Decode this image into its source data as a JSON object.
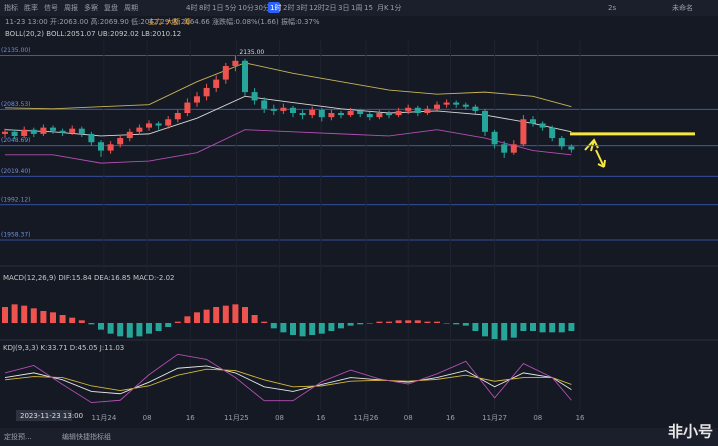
{
  "ui": {
    "toolbar": [
      "指标",
      "胜率",
      "信号",
      "周报",
      "多察",
      "复盘",
      "周期"
    ],
    "tags": [
      "主力",
      "大额",
      "筹"
    ],
    "timeframes": [
      "4时",
      "8时",
      "1日",
      "5分",
      "10分",
      "30分",
      "1时",
      "2时",
      "3时",
      "12时",
      "2日",
      "3日",
      "1周",
      "15",
      "月K",
      "1分"
    ],
    "active_timeframe": 6,
    "top_right": [
      "2s",
      "未命名"
    ],
    "ohlc_legend": "11-23 13:00 开:2063.00 高:2069.90 低:2062.29 收:2064.66 涨跌幅:0.08%(1.66) 振幅:0.37%",
    "boll_legend": "BOLL(20,2)  BOLL:2051.07  UB:2092.02  LB:2010.12",
    "macd_legend": "MACD(12,26,9)  DIF:15.84  DEA:16.85  MACD:-2.02",
    "kdj_legend": "KDJ(9,3,3)  K:33.71  D:45.05  J:11.03",
    "cursor_time": "2023-11-23 13:00",
    "bottom_bar": [
      "定投预...",
      "编辑快捷指标组"
    ],
    "watermark": "非小号"
  },
  "chart_data": {
    "type": "candlestick",
    "up_color": "#ef5350",
    "down_color": "#26a69a",
    "ylim": [
      1944,
      2148
    ],
    "high_label": "2135.00",
    "levels": [
      {
        "value": 2135.0,
        "label": "(2135.00)"
      },
      {
        "value": 2083.53,
        "label": "(2083.53)"
      },
      {
        "value": 2048.69,
        "label": "(2048.69)"
      },
      {
        "value": 2019.4,
        "label": "(2019.40)"
      },
      {
        "value": 1992.12,
        "label": "(1992.12)"
      },
      {
        "value": 1958.37,
        "label": "(1958.37)"
      }
    ],
    "yellow_line": 2060,
    "xticks": [
      {
        "value": 10.3,
        "label": "11月24"
      },
      {
        "value": 14.8,
        "label": "08"
      },
      {
        "value": 19.3,
        "label": "16"
      },
      {
        "value": 24.1,
        "label": "11月25"
      },
      {
        "value": 28.6,
        "label": "08"
      },
      {
        "value": 32.9,
        "label": "16"
      },
      {
        "value": 37.6,
        "label": "11月26"
      },
      {
        "value": 42.0,
        "label": "08"
      },
      {
        "value": 46.4,
        "label": "16"
      },
      {
        "value": 51.0,
        "label": "11月27"
      },
      {
        "value": 55.5,
        "label": "08"
      },
      {
        "value": 59.9,
        "label": "16"
      }
    ],
    "candles": [
      [
        2060,
        2065,
        2057,
        2062
      ],
      [
        2062,
        2064,
        2055,
        2058
      ],
      [
        2058,
        2067,
        2056,
        2064
      ],
      [
        2064,
        2066,
        2057,
        2060
      ],
      [
        2060,
        2069,
        2058,
        2066
      ],
      [
        2066,
        2068,
        2060,
        2063
      ],
      [
        2063,
        2065,
        2058,
        2061
      ],
      [
        2061,
        2068,
        2059,
        2065
      ],
      [
        2065,
        2067,
        2057,
        2060
      ],
      [
        2060,
        2062,
        2049,
        2052
      ],
      [
        2052,
        2054,
        2038,
        2044
      ],
      [
        2044,
        2053,
        2041,
        2050
      ],
      [
        2050,
        2059,
        2047,
        2056
      ],
      [
        2056,
        2065,
        2053,
        2062
      ],
      [
        2062,
        2069,
        2059,
        2066
      ],
      [
        2066,
        2073,
        2063,
        2070
      ],
      [
        2070,
        2072,
        2064,
        2068
      ],
      [
        2068,
        2077,
        2065,
        2074
      ],
      [
        2074,
        2083,
        2071,
        2080
      ],
      [
        2080,
        2094,
        2077,
        2090
      ],
      [
        2090,
        2100,
        2086,
        2096
      ],
      [
        2096,
        2108,
        2092,
        2104
      ],
      [
        2104,
        2116,
        2100,
        2112
      ],
      [
        2112,
        2128,
        2108,
        2125
      ],
      [
        2125,
        2135,
        2120,
        2130
      ],
      [
        2130,
        2132,
        2096,
        2100
      ],
      [
        2100,
        2104,
        2088,
        2092
      ],
      [
        2092,
        2095,
        2080,
        2084
      ],
      [
        2084,
        2088,
        2078,
        2082
      ],
      [
        2082,
        2089,
        2079,
        2085
      ],
      [
        2085,
        2087,
        2076,
        2080
      ],
      [
        2080,
        2083,
        2074,
        2078
      ],
      [
        2078,
        2086,
        2075,
        2083
      ],
      [
        2083,
        2085,
        2072,
        2076
      ],
      [
        2076,
        2083,
        2073,
        2080
      ],
      [
        2080,
        2082,
        2075,
        2078
      ],
      [
        2078,
        2085,
        2076,
        2082
      ],
      [
        2082,
        2084,
        2076,
        2079
      ],
      [
        2079,
        2081,
        2073,
        2076
      ],
      [
        2076,
        2083,
        2074,
        2080
      ],
      [
        2080,
        2082,
        2075,
        2078
      ],
      [
        2078,
        2085,
        2076,
        2082
      ],
      [
        2082,
        2088,
        2079,
        2085
      ],
      [
        2085,
        2087,
        2077,
        2080
      ],
      [
        2080,
        2087,
        2078,
        2084
      ],
      [
        2084,
        2091,
        2082,
        2088
      ],
      [
        2088,
        2093,
        2085,
        2090
      ],
      [
        2090,
        2092,
        2085,
        2088
      ],
      [
        2088,
        2090,
        2083,
        2086
      ],
      [
        2086,
        2088,
        2079,
        2082
      ],
      [
        2082,
        2084,
        2058,
        2062
      ],
      [
        2062,
        2064,
        2046,
        2050
      ],
      [
        2050,
        2053,
        2037,
        2042
      ],
      [
        2042,
        2054,
        2040,
        2050
      ],
      [
        2050,
        2078,
        2048,
        2074
      ],
      [
        2074,
        2077,
        2067,
        2070
      ],
      [
        2070,
        2072,
        2063,
        2066
      ],
      [
        2066,
        2068,
        2053,
        2056
      ],
      [
        2056,
        2058,
        2045,
        2048
      ],
      [
        2048,
        2050,
        2042,
        2045
      ]
    ],
    "boll": {
      "x": [
        0,
        5,
        10,
        15,
        20,
        25,
        30,
        35,
        40,
        45,
        50,
        55,
        59
      ],
      "upper": [
        2085,
        2084,
        2086,
        2088,
        2110,
        2128,
        2118,
        2110,
        2102,
        2098,
        2100,
        2096,
        2086
      ],
      "mid": [
        2064,
        2062,
        2058,
        2060,
        2075,
        2096,
        2090,
        2084,
        2080,
        2082,
        2078,
        2070,
        2062
      ],
      "lower": [
        2040,
        2040,
        2032,
        2034,
        2042,
        2064,
        2062,
        2060,
        2058,
        2064,
        2056,
        2044,
        2040
      ]
    },
    "macd_hist": [
      12,
      14,
      13,
      11,
      9,
      8,
      6,
      4,
      2,
      -1,
      -5,
      -8,
      -10,
      -11,
      -10,
      -8,
      -6,
      -3,
      1,
      5,
      8,
      10,
      12,
      13,
      14,
      12,
      6,
      1,
      -4,
      -7,
      -9,
      -10,
      -9,
      -8,
      -6,
      -4,
      -2,
      -1,
      0,
      1,
      1,
      2,
      2,
      2,
      1,
      1,
      0,
      -1,
      -2,
      -6,
      -10,
      -12,
      -13,
      -11,
      -6,
      -6,
      -7,
      -7,
      -7,
      -6
    ],
    "macd_ylim": [
      -30,
      30
    ],
    "kdj": {
      "x": [
        0,
        3,
        6,
        9,
        12,
        15,
        18,
        21,
        24,
        27,
        30,
        33,
        36,
        39,
        42,
        45,
        48,
        51,
        54,
        57,
        59
      ],
      "K": [
        60,
        70,
        55,
        30,
        25,
        50,
        80,
        85,
        70,
        40,
        30,
        45,
        60,
        55,
        50,
        60,
        75,
        40,
        70,
        60,
        34
      ],
      "D": [
        55,
        62,
        60,
        42,
        32,
        42,
        65,
        78,
        75,
        55,
        40,
        42,
        52,
        54,
        52,
        56,
        65,
        52,
        60,
        60,
        45
      ],
      "J": [
        70,
        86,
        45,
        6,
        11,
        66,
        110,
        99,
        60,
        10,
        10,
        51,
        76,
        57,
        46,
        68,
        95,
        16,
        90,
        60,
        11
      ]
    },
    "kdj_ylim": [
      -10,
      115
    ]
  }
}
